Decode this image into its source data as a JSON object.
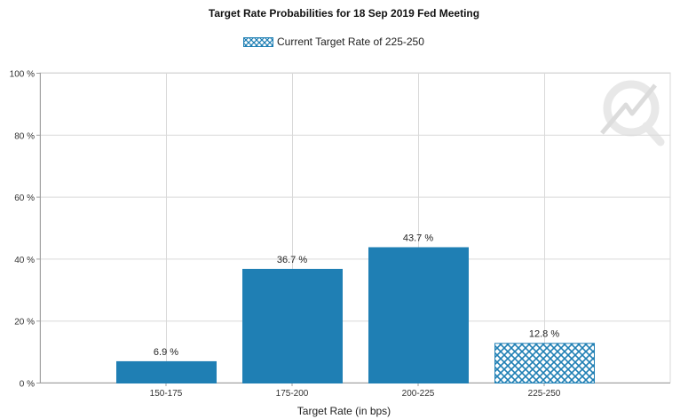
{
  "chart_data": {
    "type": "bar",
    "title": "Target Rate Probabilities for 18 Sep 2019 Fed Meeting",
    "legend": {
      "label": "Current Target Rate of 225-250",
      "placement": "top-center"
    },
    "categories": [
      "150-175",
      "175-200",
      "200-225",
      "225-250"
    ],
    "values": [
      6.9,
      36.7,
      43.7,
      12.8
    ],
    "value_labels": [
      "6.9 %",
      "36.7 %",
      "43.7 %",
      "12.8 %"
    ],
    "highlighted_category": "225-250",
    "xlabel": "Target Rate (in bps)",
    "ylabel": "",
    "ylim": [
      0,
      100
    ],
    "y_ticks": [
      0,
      20,
      40,
      60,
      80,
      100
    ],
    "y_tick_labels": [
      "0 %",
      "20 %",
      "40 %",
      "60 %",
      "80 %",
      "100 %"
    ],
    "grid": true,
    "colors": {
      "bar": "#1f7fb4",
      "grid": "#d9d9d9",
      "axis": "#a0a0a0",
      "watermark": "#e6e6e6"
    }
  }
}
